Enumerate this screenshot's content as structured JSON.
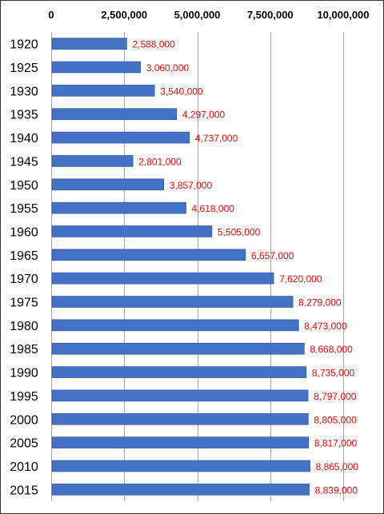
{
  "chart_data": {
    "type": "bar",
    "orientation": "horizontal",
    "title": "",
    "xlabel": "",
    "ylabel": "",
    "xlim": [
      0,
      10000000
    ],
    "x_ticks": [
      0,
      2500000,
      5000000,
      7500000,
      10000000
    ],
    "x_tick_labels": [
      "0",
      "2,500,000",
      "5,000,000",
      "7,500,000",
      "10,000,000"
    ],
    "x_axis_position": "top",
    "grid": true,
    "categories": [
      "1920",
      "1925",
      "1930",
      "1935",
      "1940",
      "1945",
      "1950",
      "1955",
      "1960",
      "1965",
      "1970",
      "1975",
      "1980",
      "1985",
      "1990",
      "1995",
      "2000",
      "2005",
      "2010",
      "2015"
    ],
    "values": [
      2588000,
      3060000,
      3540000,
      4297000,
      4737000,
      2801000,
      3857000,
      4618000,
      5505000,
      6657000,
      7620000,
      8279000,
      8473000,
      8668000,
      8735000,
      8797000,
      8805000,
      8817000,
      8865000,
      8839000
    ],
    "data_labels": [
      "2,588,000",
      "3,060,000",
      "3,540,000",
      "4,297,000",
      "4,737,000",
      "2,801,000",
      "3,857,000",
      "4,618,000",
      "5,505,000",
      "6,657,000",
      "7,620,000",
      "8,279,000",
      "8,473,000",
      "8,668,000",
      "8,735,000",
      "8,797,000",
      "8,805,000",
      "8,817,000",
      "8,865,000",
      "8,839,000"
    ],
    "colors": {
      "bar": "#4472c4",
      "bar_edge": "#2f528f",
      "data_label": "#ff0000",
      "grid": "#a6a6a6",
      "text": "#000000"
    }
  }
}
